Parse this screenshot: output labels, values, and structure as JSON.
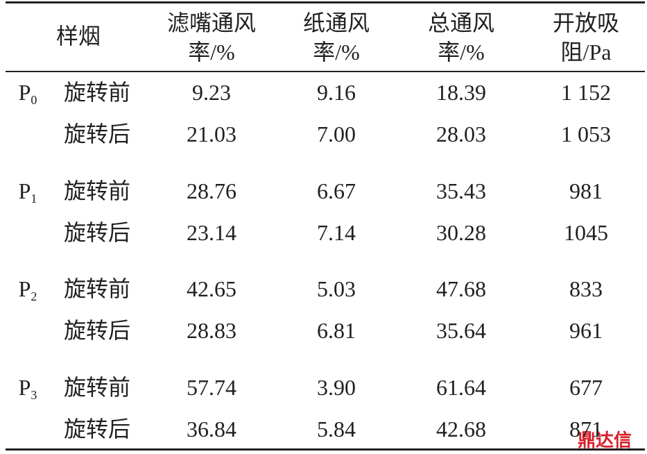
{
  "table": {
    "header": {
      "sample": "样烟",
      "columns": [
        [
          "滤嘴通风",
          "率/%"
        ],
        [
          "纸通风",
          "率/%"
        ],
        [
          "总通风",
          "率/%"
        ],
        [
          "开放吸",
          "阻/Pa"
        ]
      ]
    },
    "groups": [
      {
        "sample": "P",
        "subscript": "0",
        "rows": [
          {
            "state": "旋转前",
            "values": [
              "9.23",
              "9.16",
              "18.39",
              "1 152"
            ]
          },
          {
            "state": "旋转后",
            "values": [
              "21.03",
              "7.00",
              "28.03",
              "1 053"
            ]
          }
        ]
      },
      {
        "sample": "P",
        "subscript": "1",
        "rows": [
          {
            "state": "旋转前",
            "values": [
              "28.76",
              "6.67",
              "35.43",
              "981"
            ]
          },
          {
            "state": "旋转后",
            "values": [
              "23.14",
              "7.14",
              "30.28",
              "1045"
            ]
          }
        ]
      },
      {
        "sample": "P",
        "subscript": "2",
        "rows": [
          {
            "state": "旋转前",
            "values": [
              "42.65",
              "5.03",
              "47.68",
              "833"
            ]
          },
          {
            "state": "旋转后",
            "values": [
              "28.83",
              "6.81",
              "35.64",
              "961"
            ]
          }
        ]
      },
      {
        "sample": "P",
        "subscript": "3",
        "rows": [
          {
            "state": "旋转前",
            "values": [
              "57.74",
              "3.90",
              "61.64",
              "677"
            ]
          },
          {
            "state": "旋转后",
            "values": [
              "36.84",
              "5.84",
              "42.68",
              "871"
            ]
          }
        ]
      }
    ],
    "watermark": "鼎达信"
  }
}
